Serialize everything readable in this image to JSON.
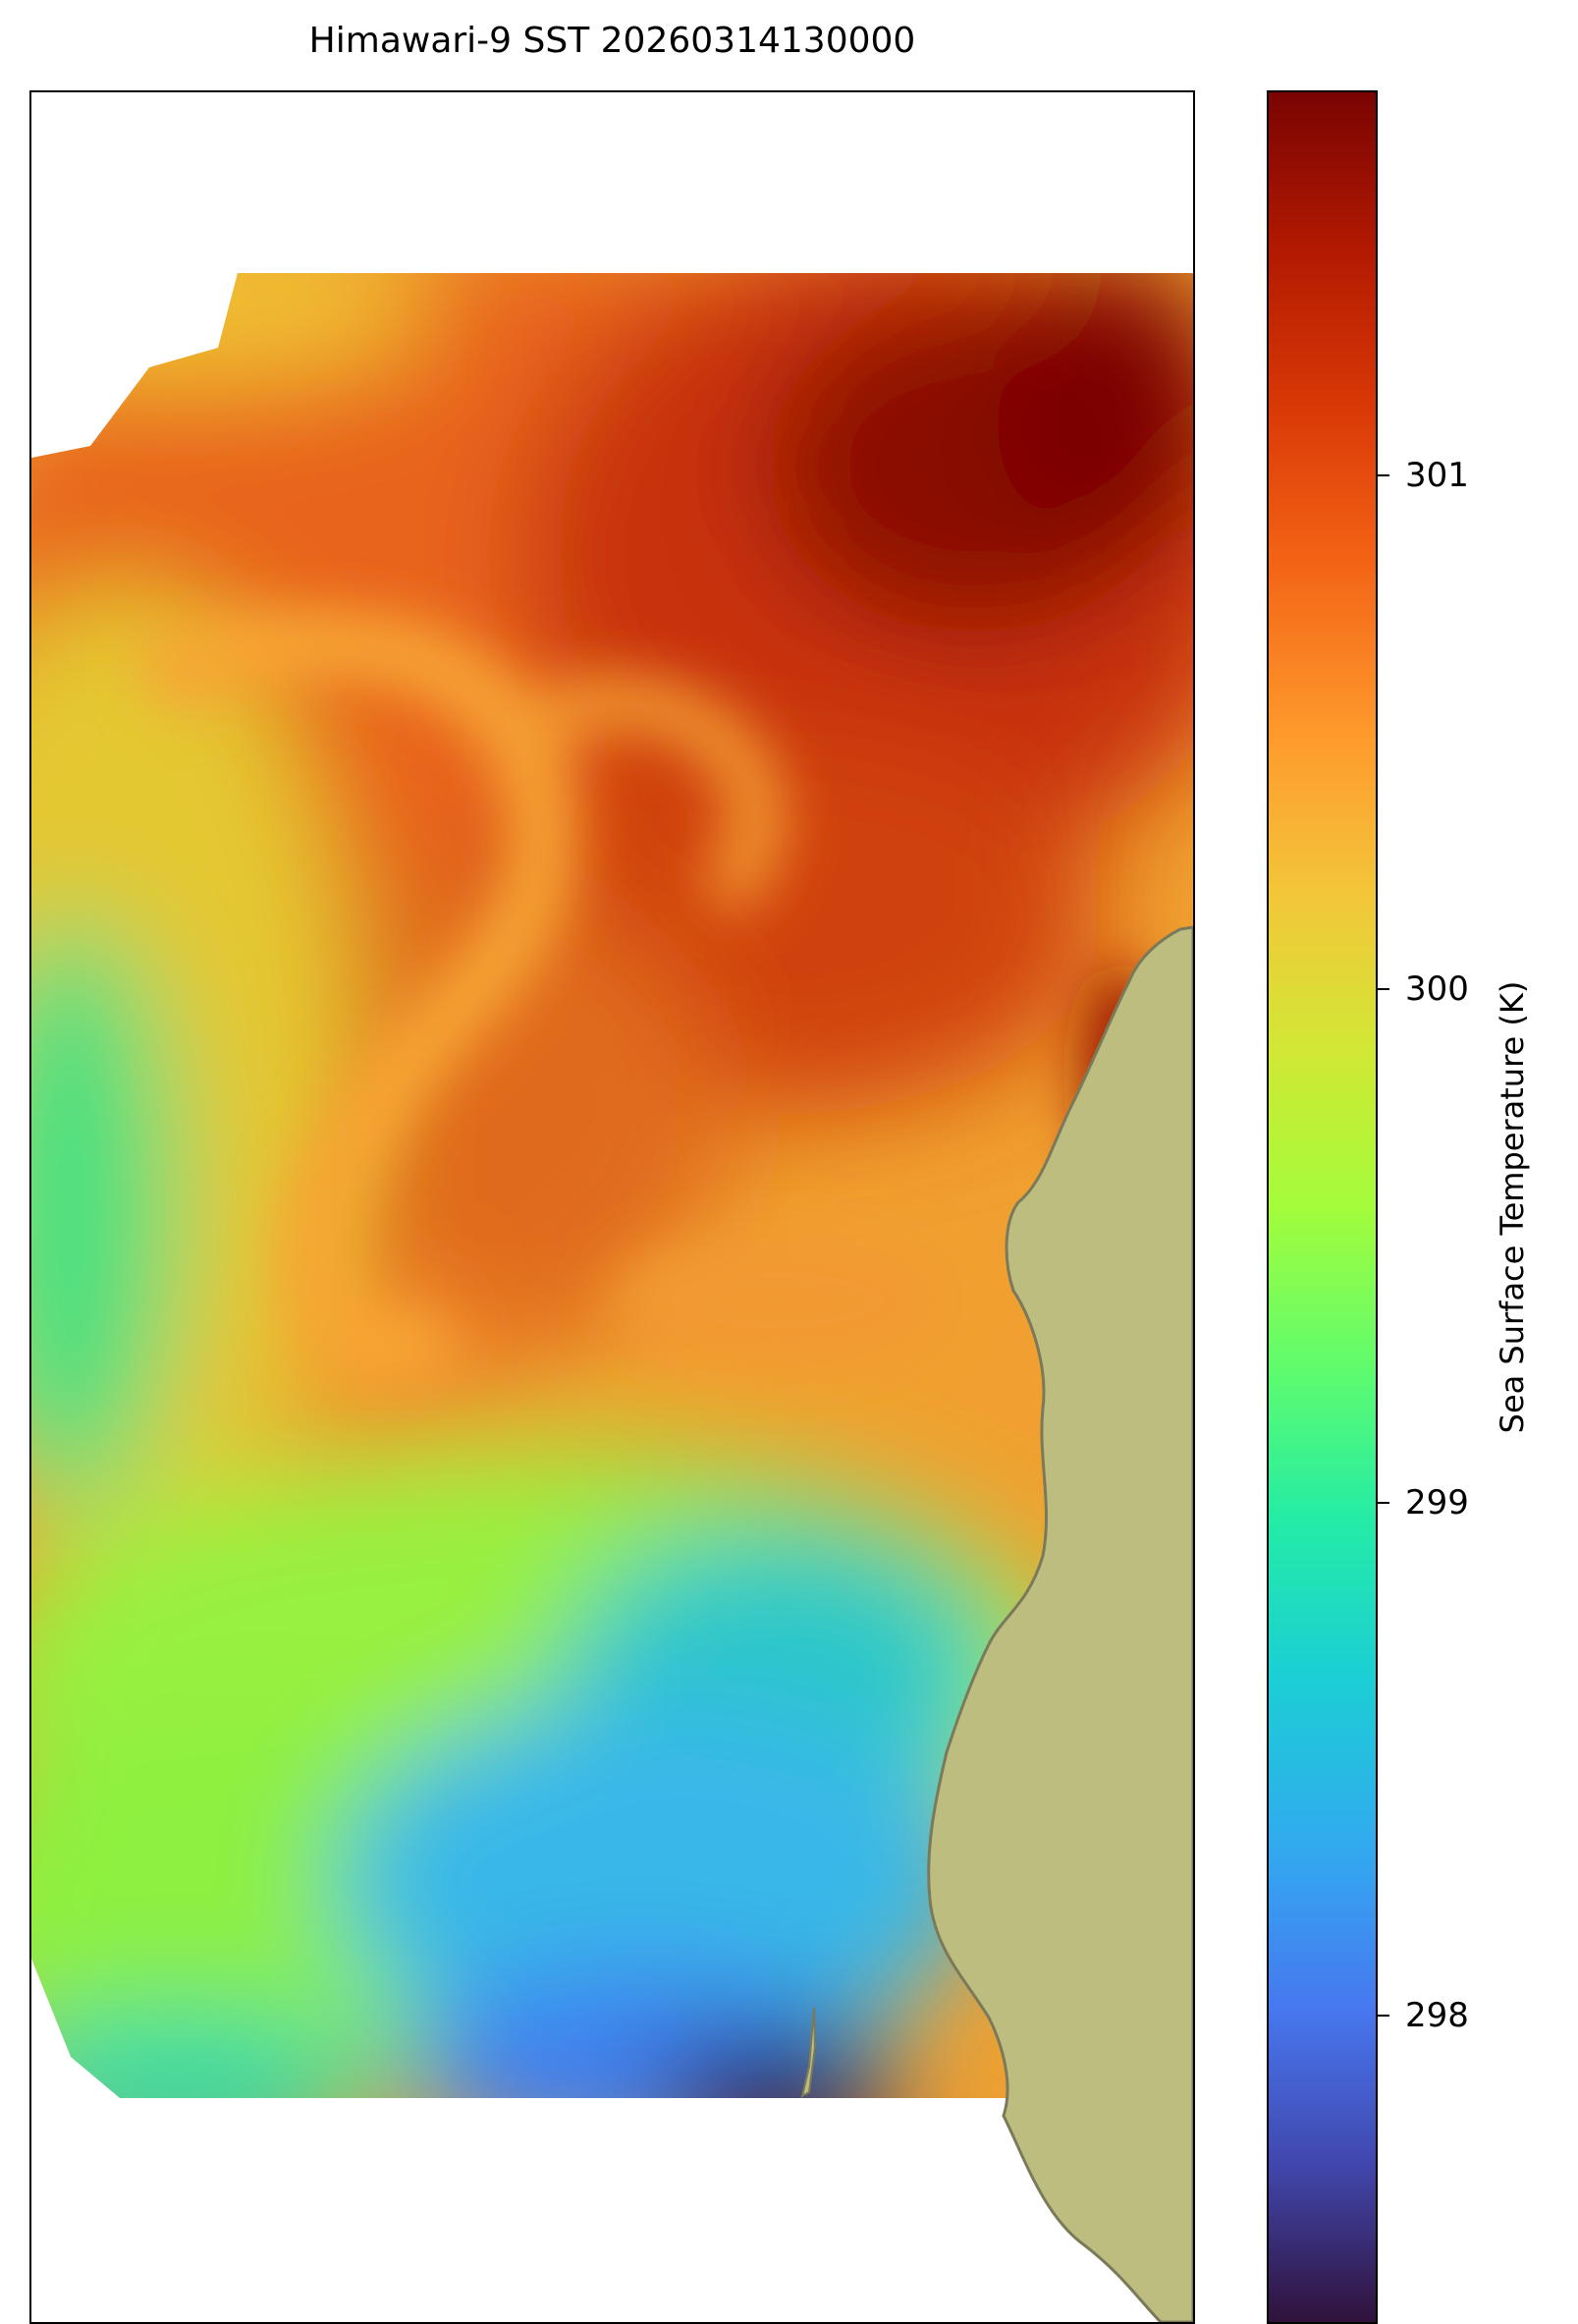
{
  "chart_data": {
    "type": "heatmap",
    "title": "Himawari-9 SST 20260314130000",
    "colorbar": {
      "label": "Sea Surface Temperature (K)",
      "ticks": [
        298,
        299,
        300,
        301
      ],
      "vmin": 297.4,
      "vmax": 301.75,
      "colormap": "turbo"
    },
    "land_color": "#bdbd80",
    "coast_color": "#7a7a5a",
    "approx_field": [
      {
        "region": "northeast eddy core",
        "value": 301.6
      },
      {
        "region": "central swirl",
        "value": 300.8
      },
      {
        "region": "west gyre center",
        "value": 299.0
      },
      {
        "region": "southern coastal band",
        "value": 298.0
      },
      {
        "region": "south shelf minimum",
        "value": 297.5
      }
    ],
    "grid": false,
    "legend": "right colorbar"
  }
}
